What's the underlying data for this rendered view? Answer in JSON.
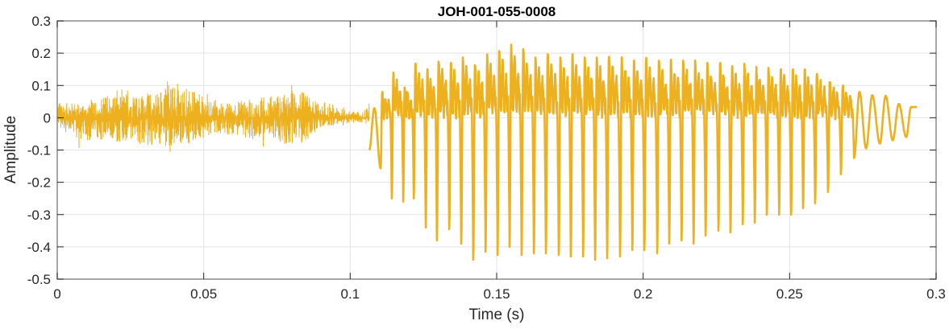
{
  "chart_data": {
    "type": "line",
    "title": "JOH-001-055-0008",
    "xlabel": "Time (s)",
    "ylabel": "Amplitude",
    "xlim": [
      0,
      0.3
    ],
    "ylim": [
      -0.5,
      0.3
    ],
    "xticks": [
      0,
      0.05,
      0.1,
      0.15,
      0.2,
      0.25,
      0.3
    ],
    "xtick_labels": [
      "0",
      "0.05",
      "0.1",
      "0.15",
      "0.2",
      "0.25",
      "0.3"
    ],
    "yticks": [
      0.3,
      0.2,
      0.1,
      0,
      -0.1,
      -0.2,
      -0.3,
      -0.4,
      -0.5
    ],
    "ytick_labels": [
      "0.3",
      "0.2",
      "0.1",
      "0",
      "-0.1",
      "-0.2",
      "-0.3",
      "-0.4",
      "-0.5"
    ],
    "grid": true,
    "line_color": "#EDB120",
    "noise_envelope": {
      "t": [
        0.0,
        0.003,
        0.008,
        0.013,
        0.018,
        0.023,
        0.028,
        0.033,
        0.038,
        0.043,
        0.048,
        0.053,
        0.058,
        0.063,
        0.068,
        0.073,
        0.078,
        0.083,
        0.086,
        0.09,
        0.095,
        0.1,
        0.104,
        0.1065
      ],
      "max": [
        0.07,
        0.06,
        0.06,
        0.08,
        0.09,
        0.1,
        0.1,
        0.1,
        0.14,
        0.12,
        0.1,
        0.06,
        0.06,
        0.07,
        0.08,
        0.09,
        0.1,
        0.11,
        0.09,
        0.05,
        0.04,
        0.03,
        0.02,
        0.06
      ],
      "min": [
        -0.02,
        -0.07,
        -0.1,
        -0.09,
        -0.1,
        -0.1,
        -0.11,
        -0.12,
        -0.12,
        -0.12,
        -0.09,
        -0.07,
        -0.07,
        -0.08,
        -0.09,
        -0.1,
        -0.11,
        -0.11,
        -0.08,
        -0.04,
        -0.03,
        -0.02,
        -0.02,
        -0.02
      ]
    },
    "voiced_pulses": {
      "trough_time": [
        0.1065,
        0.1104,
        0.1142,
        0.1181,
        0.1217,
        0.1258,
        0.1296,
        0.1338,
        0.1379,
        0.142,
        0.1462,
        0.1503,
        0.1544,
        0.1585,
        0.1627,
        0.1668,
        0.1712,
        0.1753,
        0.1795,
        0.1836,
        0.1877,
        0.1921,
        0.1963,
        0.2004,
        0.2048,
        0.2089,
        0.2131,
        0.2172,
        0.2213,
        0.2257,
        0.2298,
        0.234,
        0.2381,
        0.2422,
        0.2464,
        0.2505,
        0.2546,
        0.2587,
        0.2631,
        0.2675,
        0.272,
        0.2761,
        0.2808,
        0.2852,
        0.2898
      ],
      "trough": [
        -0.1,
        -0.157,
        -0.25,
        -0.26,
        -0.25,
        -0.34,
        -0.38,
        -0.345,
        -0.39,
        -0.44,
        -0.415,
        -0.425,
        -0.4,
        -0.425,
        -0.42,
        -0.42,
        -0.425,
        -0.43,
        -0.43,
        -0.44,
        -0.435,
        -0.43,
        -0.41,
        -0.41,
        -0.42,
        -0.39,
        -0.38,
        -0.39,
        -0.365,
        -0.35,
        -0.355,
        -0.33,
        -0.325,
        -0.3,
        -0.3,
        -0.3,
        -0.28,
        -0.265,
        -0.23,
        -0.175,
        -0.125,
        -0.095,
        -0.08,
        -0.07,
        -0.06
      ],
      "peak": [
        0.03,
        0.08,
        0.14,
        0.1,
        0.17,
        0.15,
        0.18,
        0.17,
        0.19,
        0.17,
        0.2,
        0.21,
        0.23,
        0.22,
        0.19,
        0.2,
        0.19,
        0.2,
        0.19,
        0.19,
        0.2,
        0.19,
        0.18,
        0.19,
        0.18,
        0.18,
        0.18,
        0.18,
        0.17,
        0.17,
        0.16,
        0.17,
        0.16,
        0.16,
        0.15,
        0.15,
        0.15,
        0.14,
        0.12,
        0.1,
        0.08,
        0.07,
        0.068,
        0.043,
        0.033
      ],
      "end_time": 0.2935,
      "end_value": 0.033
    }
  }
}
